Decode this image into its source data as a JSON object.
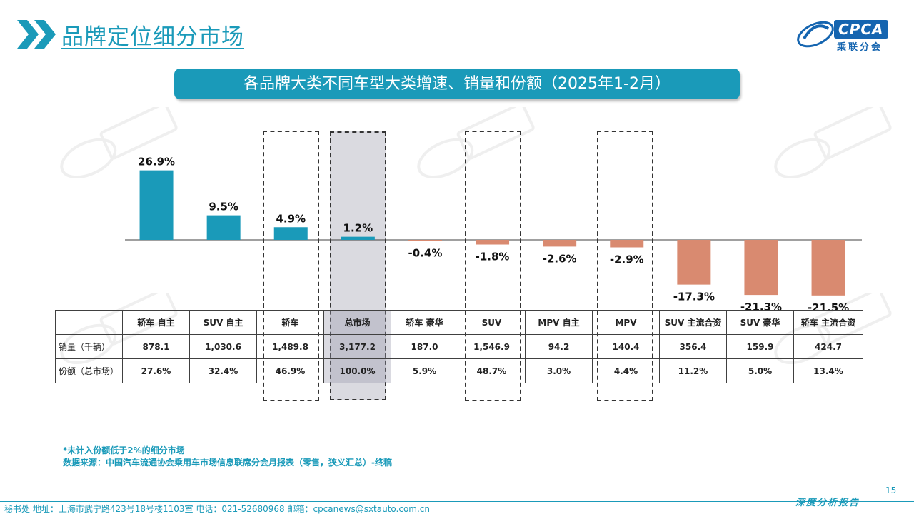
{
  "header": {
    "title": "品牌定位细分市场"
  },
  "logo": {
    "text": "CPCA",
    "sub": "乘联分会"
  },
  "chart_data": {
    "type": "bar",
    "title": "各品牌大类不同车型大类增速、销量和份额（2025年1-2月）",
    "categories": [
      "轿车 自主",
      "SUV 自主",
      "轿车",
      "总市场",
      "轿车 豪华",
      "SUV",
      "MPV 自主",
      "MPV",
      "SUV 主流合资",
      "SUV 豪华",
      "轿车 主流合资"
    ],
    "values": [
      26.9,
      9.5,
      4.9,
      1.2,
      -0.4,
      -1.8,
      -2.6,
      -2.9,
      -17.3,
      -21.3,
      -21.5
    ],
    "value_labels": [
      "26.9%",
      "9.5%",
      "4.9%",
      "1.2%",
      "-0.4%",
      "-1.8%",
      "-2.6%",
      "-2.9%",
      "-17.3%",
      "-21.3%",
      "-21.5%"
    ],
    "ylim": [
      -22,
      27
    ],
    "positive_color": "#1a9ab9",
    "negative_color": "#d98a70",
    "highlighted": [
      "轿车",
      "总市场",
      "SUV",
      "MPV"
    ],
    "shaded": "总市场"
  },
  "table": {
    "rows": [
      {
        "label": "销量（千辆）",
        "values": [
          "878.1",
          "1,030.6",
          "1,489.8",
          "3,177.2",
          "187.0",
          "1,546.9",
          "94.2",
          "140.4",
          "356.4",
          "159.9",
          "424.7"
        ]
      },
      {
        "label": "份额（总市场）",
        "values": [
          "27.6%",
          "32.4%",
          "46.9%",
          "100.0%",
          "5.9%",
          "48.7%",
          "3.0%",
          "4.4%",
          "11.2%",
          "5.0%",
          "13.4%"
        ]
      }
    ]
  },
  "notes": {
    "line1": "*未计入份额低于2%的细分市场",
    "line2": "数据来源：中国汽车流通协会乘用车市场信息联席分会月报表（零售，狭义汇总）-终稿"
  },
  "footer": {
    "address": "秘书处   地址：上海市武宁路423号18号楼1103室  电话：021-52680968   邮箱：cpcanews@sxtauto.com.cn",
    "tagline": "深度分析报告",
    "page_number": "15"
  }
}
